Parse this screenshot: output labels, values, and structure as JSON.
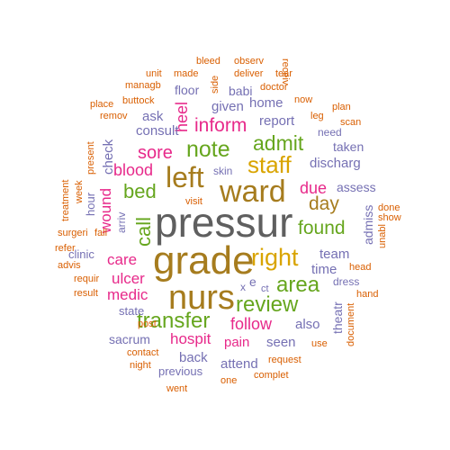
{
  "colors": {
    "gray": "#5f5f5f",
    "olive": "#a67c1e",
    "gold": "#d9a400",
    "green": "#66a61e",
    "pink": "#e7298a",
    "purple": "#7570b3",
    "orange": "#d95f02"
  },
  "words": [
    {
      "text": "pressur",
      "color": "gray"
    },
    {
      "text": "grade",
      "color": "olive"
    },
    {
      "text": "nurs",
      "color": "olive"
    },
    {
      "text": "ward",
      "color": "olive"
    },
    {
      "text": "left",
      "color": "olive"
    },
    {
      "text": "right",
      "color": "gold"
    },
    {
      "text": "staff",
      "color": "gold"
    },
    {
      "text": "note",
      "color": "green"
    },
    {
      "text": "transfer",
      "color": "green"
    },
    {
      "text": "review",
      "color": "green"
    },
    {
      "text": "area",
      "color": "green"
    },
    {
      "text": "admit",
      "color": "green"
    },
    {
      "text": "bed",
      "color": "green"
    },
    {
      "text": "found",
      "color": "green"
    },
    {
      "text": "call",
      "color": "green"
    },
    {
      "text": "day",
      "color": "olive"
    },
    {
      "text": "inform",
      "color": "pink"
    },
    {
      "text": "sore",
      "color": "pink"
    },
    {
      "text": "blood",
      "color": "pink"
    },
    {
      "text": "due",
      "color": "pink"
    },
    {
      "text": "follow",
      "color": "pink"
    },
    {
      "text": "hospit",
      "color": "pink"
    },
    {
      "text": "care",
      "color": "pink"
    },
    {
      "text": "ulcer",
      "color": "pink"
    },
    {
      "text": "medic",
      "color": "pink"
    },
    {
      "text": "heel",
      "color": "pink"
    },
    {
      "text": "wound",
      "color": "pink"
    },
    {
      "text": "pain",
      "color": "pink"
    },
    {
      "text": "given",
      "color": "purple"
    },
    {
      "text": "home",
      "color": "purple"
    },
    {
      "text": "report",
      "color": "purple"
    },
    {
      "text": "consult",
      "color": "purple"
    },
    {
      "text": "ask",
      "color": "purple"
    },
    {
      "text": "floor",
      "color": "purple"
    },
    {
      "text": "babi",
      "color": "purple"
    },
    {
      "text": "check",
      "color": "purple"
    },
    {
      "text": "discharg",
      "color": "purple"
    },
    {
      "text": "assess",
      "color": "purple"
    },
    {
      "text": "taken",
      "color": "purple"
    },
    {
      "text": "team",
      "color": "purple"
    },
    {
      "text": "time",
      "color": "purple"
    },
    {
      "text": "admiss",
      "color": "purple"
    },
    {
      "text": "theatr",
      "color": "purple"
    },
    {
      "text": "also",
      "color": "purple"
    },
    {
      "text": "seen",
      "color": "purple"
    },
    {
      "text": "back",
      "color": "purple"
    },
    {
      "text": "attend",
      "color": "purple"
    },
    {
      "text": "sacrum",
      "color": "purple"
    },
    {
      "text": "state",
      "color": "purple"
    },
    {
      "text": "clinic",
      "color": "purple"
    },
    {
      "text": "hour",
      "color": "purple"
    },
    {
      "text": "skin",
      "color": "purple"
    },
    {
      "text": "previous",
      "color": "purple"
    },
    {
      "text": "arriv",
      "color": "purple"
    },
    {
      "text": "need",
      "color": "purple"
    },
    {
      "text": "dress",
      "color": "purple"
    },
    {
      "text": "e",
      "color": "purple"
    },
    {
      "text": "x",
      "color": "purple"
    },
    {
      "text": "ct",
      "color": "purple"
    },
    {
      "text": "bleed",
      "color": "orange"
    },
    {
      "text": "observ",
      "color": "orange"
    },
    {
      "text": "side",
      "color": "orange"
    },
    {
      "text": "unit",
      "color": "orange"
    },
    {
      "text": "made",
      "color": "orange"
    },
    {
      "text": "deliver",
      "color": "orange"
    },
    {
      "text": "tear",
      "color": "orange"
    },
    {
      "text": "receiv",
      "color": "orange"
    },
    {
      "text": "managb",
      "color": "orange"
    },
    {
      "text": "doctor",
      "color": "orange"
    },
    {
      "text": "now",
      "color": "orange"
    },
    {
      "text": "place",
      "color": "orange"
    },
    {
      "text": "buttock",
      "color": "orange"
    },
    {
      "text": "remov",
      "color": "orange"
    },
    {
      "text": "plan",
      "color": "orange"
    },
    {
      "text": "leg",
      "color": "orange"
    },
    {
      "text": "scan",
      "color": "orange"
    },
    {
      "text": "present",
      "color": "orange"
    },
    {
      "text": "week",
      "color": "orange"
    },
    {
      "text": "treatment",
      "color": "orange"
    },
    {
      "text": "surgeri",
      "color": "orange"
    },
    {
      "text": "fall",
      "color": "orange"
    },
    {
      "text": "refer",
      "color": "orange"
    },
    {
      "text": "advis",
      "color": "orange"
    },
    {
      "text": "requir",
      "color": "orange"
    },
    {
      "text": "result",
      "color": "orange"
    },
    {
      "text": "visit",
      "color": "orange"
    },
    {
      "text": "done",
      "color": "orange"
    },
    {
      "text": "show",
      "color": "orange"
    },
    {
      "text": "unabl",
      "color": "orange"
    },
    {
      "text": "head",
      "color": "orange"
    },
    {
      "text": "hand",
      "color": "orange"
    },
    {
      "text": "document",
      "color": "orange"
    },
    {
      "text": "use",
      "color": "orange"
    },
    {
      "text": "post",
      "color": "orange"
    },
    {
      "text": "contact",
      "color": "orange"
    },
    {
      "text": "night",
      "color": "orange"
    },
    {
      "text": "request",
      "color": "orange"
    },
    {
      "text": "went",
      "color": "orange"
    },
    {
      "text": "one",
      "color": "orange"
    },
    {
      "text": "complet",
      "color": "orange"
    }
  ]
}
